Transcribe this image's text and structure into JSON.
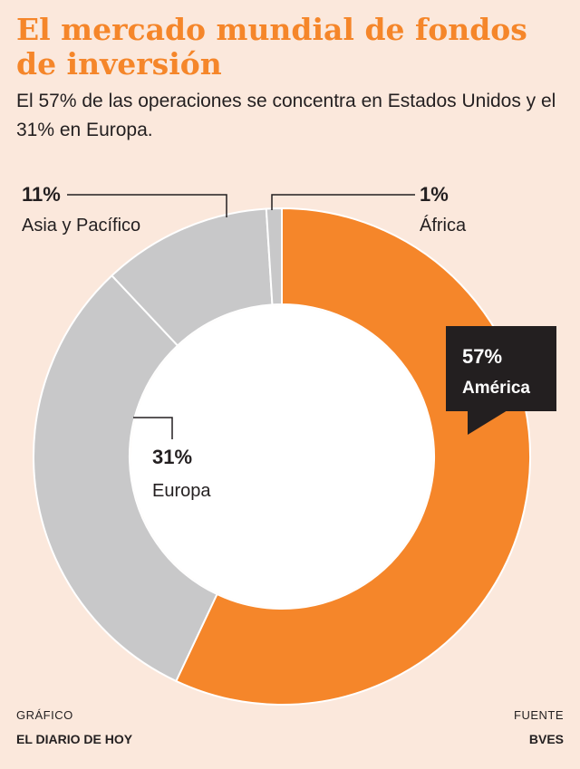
{
  "title": "El mercado mundial de fondos de inversión",
  "subtitle": "El 57% de las operaciones se concentra en Estados Unidos y el 31% en Europa.",
  "footer": {
    "graphic_label": "GRÁFICO",
    "graphic_name": "EL DIARIO DE HOY",
    "source_label": "FUENTE",
    "source_name": "BVES"
  },
  "colors": {
    "highlight": "#f5862a",
    "others": "#c8c8c9",
    "background": "#fbe8dc",
    "callout": "#231f20"
  },
  "chart_data": {
    "type": "pie",
    "donut": true,
    "slices": [
      {
        "label": "América",
        "value": 57,
        "display": "57%"
      },
      {
        "label": "Europa",
        "value": 31,
        "display": "31%"
      },
      {
        "label": "Asia y Pacífico",
        "value": 11,
        "display": "11%"
      },
      {
        "label": "África",
        "value": 1,
        "display": "1%"
      }
    ]
  }
}
